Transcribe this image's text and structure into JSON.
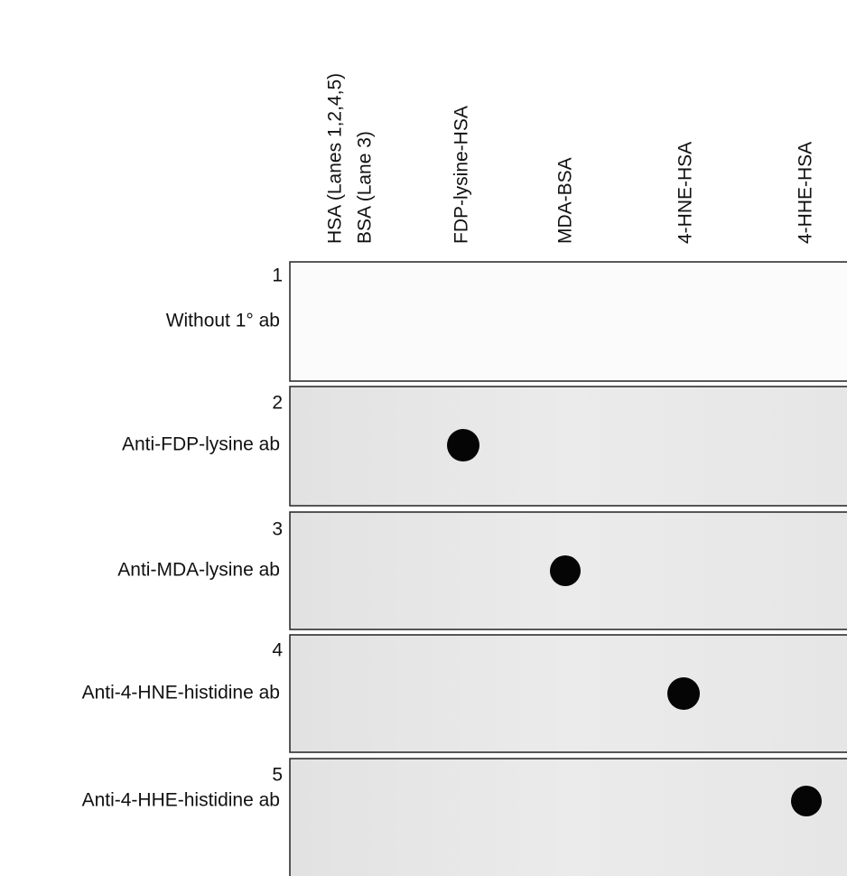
{
  "columns": [
    [
      "HSA (Lanes 1,2,4,5)",
      "BSA (Lane 3)"
    ],
    [
      "FDP-lysine-HSA"
    ],
    [
      "MDA-BSA"
    ],
    [
      "4-HNE-HSA"
    ],
    [
      "4-HHE-HSA"
    ]
  ],
  "rows": [
    {
      "number": "1",
      "label": "Without 1° ab"
    },
    {
      "number": "2",
      "label": "Anti-FDP-lysine ab"
    },
    {
      "number": "3",
      "label": "Anti-MDA-lysine ab"
    },
    {
      "number": "4",
      "label": "Anti-4-HNE-histidine ab"
    },
    {
      "number": "5",
      "label": "Anti-4-HHE-histidine ab"
    }
  ]
}
